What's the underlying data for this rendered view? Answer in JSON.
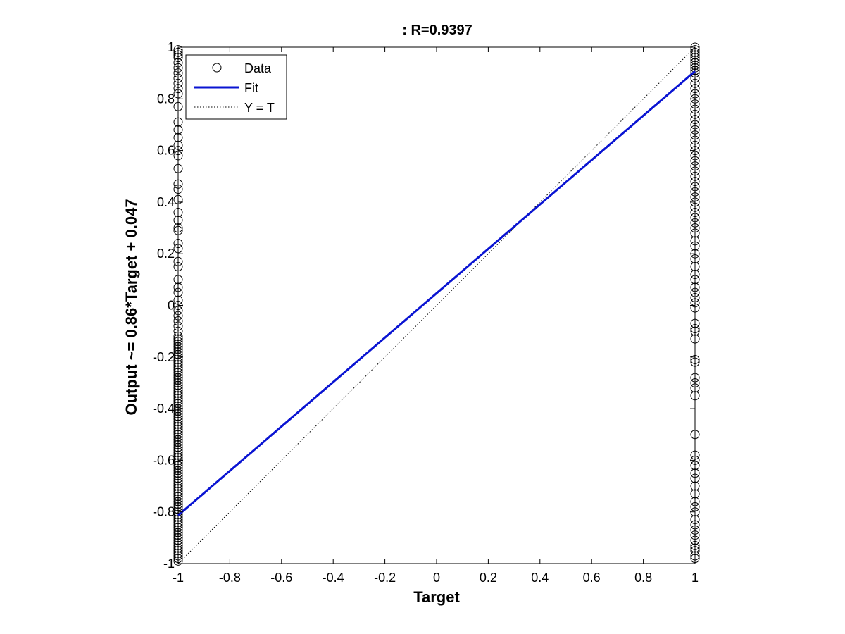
{
  "chart_data": {
    "type": "scatter",
    "title": ": R=0.9397",
    "xlabel": "Target",
    "ylabel": "Output ~= 0.86*Target + 0.047",
    "xlim": [
      -1,
      1
    ],
    "ylim": [
      -1,
      1
    ],
    "xticks": [
      "-1",
      "-0.8",
      "-0.6",
      "-0.4",
      "-0.2",
      "0",
      "0.2",
      "0.4",
      "0.6",
      "0.8",
      "1"
    ],
    "yticks": [
      "-1",
      "-0.8",
      "-0.6",
      "-0.4",
      "-0.2",
      "0",
      "0.2",
      "0.4",
      "0.6",
      "0.8",
      "1"
    ],
    "grid": false,
    "legend_position": "top-left",
    "legend": [
      {
        "label": "Data",
        "style": "circle-marker"
      },
      {
        "label": "Fit",
        "style": "solid-line"
      },
      {
        "label": "Y = T",
        "style": "dotted-line"
      }
    ],
    "colors": {
      "data": "#000000",
      "fit": "#0a14d2",
      "identity": "#000000"
    },
    "series": [
      {
        "name": "Data",
        "kind": "points",
        "groups": [
          {
            "x": -1,
            "y": [
              -0.99,
              -0.98,
              -0.97,
              -0.96,
              -0.95,
              -0.94,
              -0.93,
              -0.92,
              -0.91,
              -0.9,
              -0.89,
              -0.88,
              -0.87,
              -0.86,
              -0.85,
              -0.84,
              -0.83,
              -0.82,
              -0.81,
              -0.8,
              -0.79,
              -0.78,
              -0.77,
              -0.76,
              -0.75,
              -0.74,
              -0.73,
              -0.72,
              -0.71,
              -0.7,
              -0.69,
              -0.68,
              -0.67,
              -0.66,
              -0.65,
              -0.64,
              -0.63,
              -0.62,
              -0.61,
              -0.6,
              -0.59,
              -0.58,
              -0.57,
              -0.56,
              -0.55,
              -0.54,
              -0.53,
              -0.52,
              -0.51,
              -0.5,
              -0.49,
              -0.48,
              -0.47,
              -0.46,
              -0.45,
              -0.44,
              -0.43,
              -0.42,
              -0.41,
              -0.4,
              -0.39,
              -0.38,
              -0.37,
              -0.36,
              -0.35,
              -0.34,
              -0.33,
              -0.32,
              -0.31,
              -0.3,
              -0.29,
              -0.28,
              -0.27,
              -0.26,
              -0.25,
              -0.24,
              -0.23,
              -0.22,
              -0.21,
              -0.2,
              -0.19,
              -0.18,
              -0.17,
              -0.16,
              -0.15,
              -0.14,
              -0.13,
              -0.12,
              -0.1,
              -0.08,
              -0.06,
              -0.04,
              -0.02,
              0.0,
              0.02,
              0.05,
              0.07,
              0.1,
              0.15,
              0.17,
              0.22,
              0.24,
              0.29,
              0.3,
              0.33,
              0.36,
              0.41,
              0.45,
              0.47,
              0.53,
              0.58,
              0.6,
              0.62,
              0.65,
              0.68,
              0.71,
              0.77,
              0.82,
              0.84,
              0.86,
              0.88,
              0.9,
              0.92,
              0.94,
              0.96,
              0.97,
              0.98,
              0.99
            ]
          },
          {
            "x": 1,
            "y": [
              -0.98,
              -0.97,
              -0.95,
              -0.94,
              -0.93,
              -0.91,
              -0.89,
              -0.87,
              -0.85,
              -0.83,
              -0.8,
              -0.78,
              -0.76,
              -0.73,
              -0.7,
              -0.67,
              -0.65,
              -0.62,
              -0.6,
              -0.58,
              -0.5,
              -0.35,
              -0.32,
              -0.3,
              -0.28,
              -0.22,
              -0.21,
              -0.13,
              -0.1,
              -0.09,
              -0.07,
              -0.01,
              0.01,
              0.03,
              0.05,
              0.07,
              0.1,
              0.12,
              0.15,
              0.18,
              0.2,
              0.23,
              0.25,
              0.28,
              0.3,
              0.32,
              0.34,
              0.36,
              0.38,
              0.4,
              0.42,
              0.44,
              0.46,
              0.48,
              0.5,
              0.52,
              0.54,
              0.56,
              0.58,
              0.6,
              0.62,
              0.64,
              0.66,
              0.68,
              0.7,
              0.72,
              0.74,
              0.76,
              0.78,
              0.8,
              0.82,
              0.84,
              0.86,
              0.88,
              0.9,
              0.91,
              0.92,
              0.93,
              0.94,
              0.95,
              0.96,
              0.97,
              0.98,
              0.99,
              1.0
            ]
          }
        ]
      },
      {
        "name": "Fit",
        "kind": "line",
        "x": [
          -1,
          1
        ],
        "y": [
          -0.813,
          0.907
        ]
      },
      {
        "name": "Y = T",
        "kind": "line",
        "x": [
          -1,
          1
        ],
        "y": [
          -1,
          1
        ]
      }
    ]
  }
}
